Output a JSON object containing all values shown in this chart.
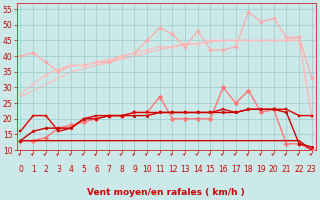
{
  "x": [
    0,
    1,
    2,
    3,
    4,
    5,
    6,
    7,
    8,
    9,
    10,
    11,
    12,
    13,
    14,
    15,
    16,
    17,
    18,
    19,
    20,
    21,
    22,
    23
  ],
  "series": [
    {
      "name": "smooth_upper1",
      "color": "#ffbbbb",
      "linewidth": 0.9,
      "marker": null,
      "zorder": 1,
      "y": [
        27,
        29,
        31,
        33,
        35,
        36,
        37,
        38,
        39,
        40,
        41,
        42,
        43,
        43.5,
        44,
        44.5,
        45,
        45,
        45,
        45,
        45,
        45,
        46,
        20
      ]
    },
    {
      "name": "spiky_upper",
      "color": "#ffaaaa",
      "linewidth": 0.9,
      "marker": "D",
      "markersize": 2,
      "zorder": 2,
      "y": [
        40,
        41,
        38,
        35,
        37,
        37,
        38,
        38,
        40,
        41,
        45,
        49,
        47,
        43,
        48,
        42,
        42,
        43,
        54,
        51,
        52,
        46,
        46,
        33
      ]
    },
    {
      "name": "smooth_upper2",
      "color": "#ffbbbb",
      "linewidth": 0.9,
      "marker": "^",
      "markersize": 2,
      "zorder": 2,
      "y": [
        28,
        31,
        34,
        36,
        37,
        37,
        38,
        39,
        40,
        41,
        42,
        43,
        43,
        44,
        44,
        45,
        45,
        45,
        45,
        45,
        45,
        45,
        45,
        21
      ]
    },
    {
      "name": "mid_spiky",
      "color": "#ff7777",
      "linewidth": 1.0,
      "marker": "D",
      "markersize": 2.5,
      "zorder": 3,
      "y": [
        13,
        13,
        14,
        17,
        18,
        19,
        20,
        21,
        21,
        22,
        22,
        27,
        20,
        20,
        20,
        20,
        30,
        25,
        29,
        22,
        23,
        12,
        12,
        10
      ]
    },
    {
      "name": "lower_spiky1",
      "color": "#dd0000",
      "linewidth": 1.0,
      "marker": "s",
      "markersize": 2,
      "zorder": 4,
      "y": [
        16,
        21,
        21,
        16,
        17,
        20,
        21,
        21,
        21,
        22,
        22,
        22,
        22,
        22,
        22,
        22,
        23,
        22,
        23,
        23,
        23,
        23,
        21,
        21
      ]
    },
    {
      "name": "flat_line",
      "color": "#cc0000",
      "linewidth": 1.0,
      "marker": null,
      "zorder": 4,
      "y": [
        13,
        13,
        13,
        13,
        13,
        13,
        13,
        13,
        13,
        13,
        13,
        13,
        13,
        13,
        13,
        13,
        13,
        13,
        13,
        13,
        13,
        13,
        13,
        10
      ]
    },
    {
      "name": "lower_spiky2",
      "color": "#cc0000",
      "linewidth": 1.0,
      "marker": "o",
      "markersize": 2,
      "zorder": 4,
      "y": [
        13,
        16,
        17,
        17,
        17,
        20,
        20,
        21,
        21,
        21,
        21,
        22,
        22,
        22,
        22,
        22,
        22,
        22,
        23,
        23,
        23,
        22,
        12,
        11
      ]
    }
  ],
  "ylim": [
    10,
    57
  ],
  "yticks": [
    10,
    15,
    20,
    25,
    30,
    35,
    40,
    45,
    50,
    55
  ],
  "xlim": [
    -0.3,
    23.3
  ],
  "xticks": [
    0,
    1,
    2,
    3,
    4,
    5,
    6,
    7,
    8,
    9,
    10,
    11,
    12,
    13,
    14,
    15,
    16,
    17,
    18,
    19,
    20,
    21,
    22,
    23
  ],
  "xlabel": "Vent moyen/en rafales ( km/h )",
  "xlabel_fontsize": 6.5,
  "tick_fontsize": 5.5,
  "bg_color": "#cce9e9",
  "grid_color": "#99cccc",
  "tick_color": "#cc0000",
  "label_color": "#cc0000"
}
